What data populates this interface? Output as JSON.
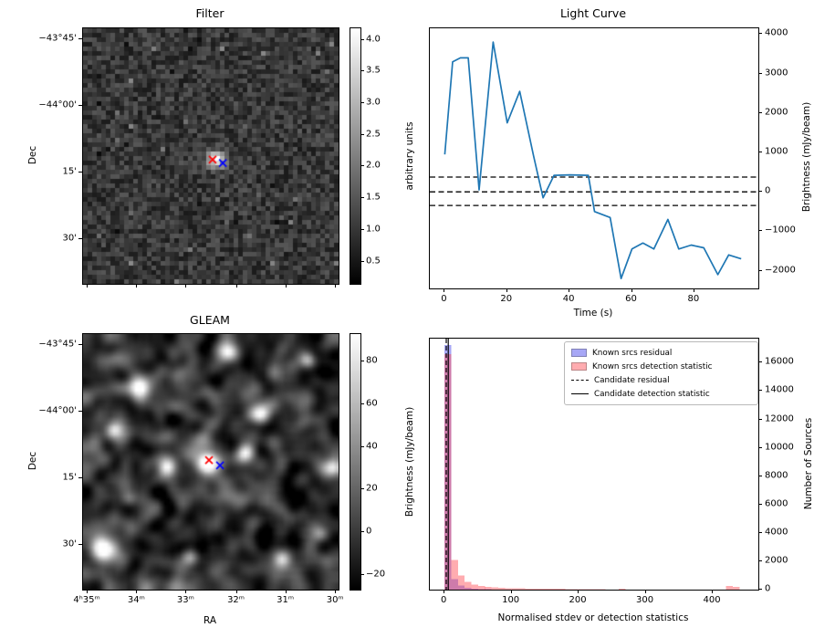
{
  "figure": {
    "background": "#ffffff"
  },
  "chart_data": [
    {
      "id": "filter",
      "type": "heatmap",
      "title": "Filter",
      "ylabel": "Dec",
      "yticks": [
        {
          "label": "−43°45'",
          "pos": 0.043
        },
        {
          "label": "−44°00'",
          "pos": 0.304
        },
        {
          "label": "15'",
          "pos": 0.564
        },
        {
          "label": "30'",
          "pos": 0.825
        }
      ],
      "xticks": [
        {
          "label": "",
          "pos": 0.018
        },
        {
          "label": "",
          "pos": 0.212
        },
        {
          "label": "",
          "pos": 0.405
        },
        {
          "label": "",
          "pos": 0.602
        },
        {
          "label": "",
          "pos": 0.795
        },
        {
          "label": "",
          "pos": 0.99
        }
      ],
      "colorbar": {
        "label": "arbitrary units",
        "range": [
          0.15,
          4.18
        ],
        "ticks": [
          {
            "v": 0.5,
            "label": "0.5"
          },
          {
            "v": 1.0,
            "label": "1.0"
          },
          {
            "v": 1.5,
            "label": "1.5"
          },
          {
            "v": 2.0,
            "label": "2.0"
          },
          {
            "v": 2.5,
            "label": "2.5"
          },
          {
            "v": 3.0,
            "label": "3.0"
          },
          {
            "v": 3.5,
            "label": "3.5"
          },
          {
            "v": 4.0,
            "label": "4.0"
          }
        ]
      },
      "seed": 20,
      "noise": {
        "cells": 56,
        "base": 0.55,
        "spread": 1.0
      },
      "source_blob": {
        "x": 0.52,
        "y": 0.515,
        "amp": 2.9,
        "sigma": 1.4
      },
      "markers": [
        {
          "shape": "x",
          "color": "#ff0000",
          "x": 0.507,
          "y": 0.514
        },
        {
          "shape": "x",
          "color": "#0000ff",
          "x": 0.547,
          "y": 0.527
        }
      ]
    },
    {
      "id": "light_curve",
      "type": "line",
      "title": "Light Curve",
      "xlabel": "Time (s)",
      "ylabel": "Brightness (mJy/beam)",
      "xlim": [
        -4.8,
        100.5
      ],
      "ylim": [
        -2450,
        4150
      ],
      "xticks": [
        {
          "v": 0,
          "label": "0"
        },
        {
          "v": 20,
          "label": "20"
        },
        {
          "v": 40,
          "label": "40"
        },
        {
          "v": 60,
          "label": "60"
        },
        {
          "v": 80,
          "label": "80"
        }
      ],
      "yticks": [
        {
          "v": -2000,
          "label": "−2000"
        },
        {
          "v": -1000,
          "label": "−1000"
        },
        {
          "v": 0,
          "label": "0"
        },
        {
          "v": 1000,
          "label": "1000"
        },
        {
          "v": 2000,
          "label": "2000"
        },
        {
          "v": 3000,
          "label": "3000"
        },
        {
          "v": 4000,
          "label": "4000"
        }
      ],
      "line_color": "#1f77b4",
      "x": [
        0,
        2.5,
        5,
        7.5,
        11,
        15.5,
        20,
        24,
        28.5,
        31.5,
        35,
        40,
        46,
        48,
        53,
        56.5,
        60,
        63.5,
        67,
        71.5,
        75,
        79,
        83,
        87.5,
        91,
        95
      ],
      "y": [
        950,
        3300,
        3400,
        3400,
        50,
        3800,
        1750,
        2550,
        900,
        -150,
        420,
        430,
        420,
        -500,
        -650,
        -2200,
        -1450,
        -1300,
        -1450,
        -700,
        -1450,
        -1350,
        -1420,
        -2100,
        -1600,
        -1700
      ],
      "hlines": [
        {
          "y": 375,
          "style": "dashed"
        },
        {
          "y": 0,
          "style": "dashed"
        },
        {
          "y": -345,
          "style": "dashed"
        }
      ]
    },
    {
      "id": "gleam",
      "type": "heatmap",
      "title": "GLEAM",
      "xlabel": "RA",
      "ylabel": "Dec",
      "yticks": [
        {
          "label": "−43°45'",
          "pos": 0.043
        },
        {
          "label": "−44°00'",
          "pos": 0.304
        },
        {
          "label": "15'",
          "pos": 0.564
        },
        {
          "label": "30'",
          "pos": 0.825
        }
      ],
      "xticks": [
        {
          "label": "4ʰ35ᵐ",
          "pos": 0.018
        },
        {
          "label": "34ᵐ",
          "pos": 0.212
        },
        {
          "label": "33ᵐ",
          "pos": 0.405
        },
        {
          "label": "32ᵐ",
          "pos": 0.602
        },
        {
          "label": "31ᵐ",
          "pos": 0.795
        },
        {
          "label": "30ᵐ",
          "pos": 0.99
        }
      ],
      "colorbar": {
        "label": "Brightness (mJy/beam)",
        "range": [
          -27,
          93
        ],
        "ticks": [
          {
            "v": -20,
            "label": "−20"
          },
          {
            "v": 0,
            "label": "0"
          },
          {
            "v": 20,
            "label": "20"
          },
          {
            "v": 40,
            "label": "40"
          },
          {
            "v": 60,
            "label": "60"
          },
          {
            "v": 80,
            "label": "80"
          }
        ]
      },
      "seed": 5,
      "blobs": [
        [
          0.22,
          0.2,
          130,
          2.4
        ],
        [
          0.57,
          0.065,
          95,
          1.9
        ],
        [
          0.88,
          0.105,
          70,
          1.5
        ],
        [
          0.12,
          0.375,
          80,
          1.7
        ],
        [
          0.33,
          0.52,
          85,
          1.8
        ],
        [
          0.7,
          0.315,
          110,
          2.0
        ],
        [
          0.49,
          0.5,
          140,
          2.2
        ],
        [
          0.635,
          0.465,
          110,
          1.8
        ],
        [
          0.975,
          0.52,
          80,
          1.8
        ],
        [
          0.075,
          0.84,
          120,
          2.1
        ],
        [
          0.42,
          0.88,
          60,
          1.6
        ],
        [
          0.78,
          0.88,
          55,
          1.6
        ],
        [
          0.18,
          0.645,
          50,
          1.5
        ],
        [
          0.93,
          0.78,
          45,
          1.5
        ]
      ],
      "markers": [
        {
          "shape": "x",
          "color": "#ff0000",
          "x": 0.493,
          "y": 0.493
        },
        {
          "shape": "x",
          "color": "#0000ff",
          "x": 0.536,
          "y": 0.514
        }
      ]
    },
    {
      "id": "histogram",
      "type": "bar",
      "xlabel": "Normalised stdev or detection statistics",
      "ylabel": "Number of Sources",
      "xlim": [
        -22,
        468
      ],
      "ylim": [
        0,
        17700
      ],
      "xticks": [
        {
          "v": 0,
          "label": "0"
        },
        {
          "v": 100,
          "label": "100"
        },
        {
          "v": 200,
          "label": "200"
        },
        {
          "v": 300,
          "label": "300"
        },
        {
          "v": 400,
          "label": "400"
        }
      ],
      "yticks": [
        {
          "v": 0,
          "label": "0"
        },
        {
          "v": 2000,
          "label": "2000"
        },
        {
          "v": 4000,
          "label": "4000"
        },
        {
          "v": 6000,
          "label": "6000"
        },
        {
          "v": 8000,
          "label": "8000"
        },
        {
          "v": 10000,
          "label": "10000"
        },
        {
          "v": 12000,
          "label": "12000"
        },
        {
          "v": 14000,
          "label": "14000"
        },
        {
          "v": 16000,
          "label": "16000"
        }
      ],
      "bin_start": 0,
      "bin_width": 10,
      "series": [
        {
          "name": "Known srcs residual",
          "color": "rgba(60,60,235,0.45)",
          "values": [
            17250,
            750,
            280,
            130,
            70,
            40,
            25,
            15,
            10,
            7,
            5,
            3,
            2,
            2,
            1,
            1,
            1
          ]
        },
        {
          "name": "Known srcs detection statistic",
          "color": "rgba(255,70,80,0.45)",
          "values": [
            16600,
            2100,
            1000,
            560,
            360,
            260,
            200,
            160,
            130,
            110,
            95,
            85,
            75,
            70,
            65,
            60,
            55,
            50,
            45,
            40,
            35,
            30,
            25,
            20,
            15,
            10,
            80,
            5,
            3,
            2,
            1,
            1,
            0,
            0,
            0,
            0,
            0,
            0,
            0,
            0,
            0,
            0,
            250,
            180
          ]
        }
      ],
      "vlines": [
        {
          "label": "Candidate residual",
          "x": 2.5,
          "style": "dashed"
        },
        {
          "label": "Candidate detection statistic",
          "x": 5.5,
          "style": "solid"
        }
      ],
      "legend": {
        "items": [
          {
            "label": "Known srcs residual",
            "swatch": "patch",
            "color": "rgba(60,60,235,0.45)"
          },
          {
            "label": "Known srcs detection statistic",
            "swatch": "patch",
            "color": "rgba(255,70,80,0.45)"
          },
          {
            "label": "Candidate residual",
            "swatch": "dashed-line"
          },
          {
            "label": "Candidate detection statistic",
            "swatch": "solid-line"
          }
        ]
      }
    }
  ]
}
